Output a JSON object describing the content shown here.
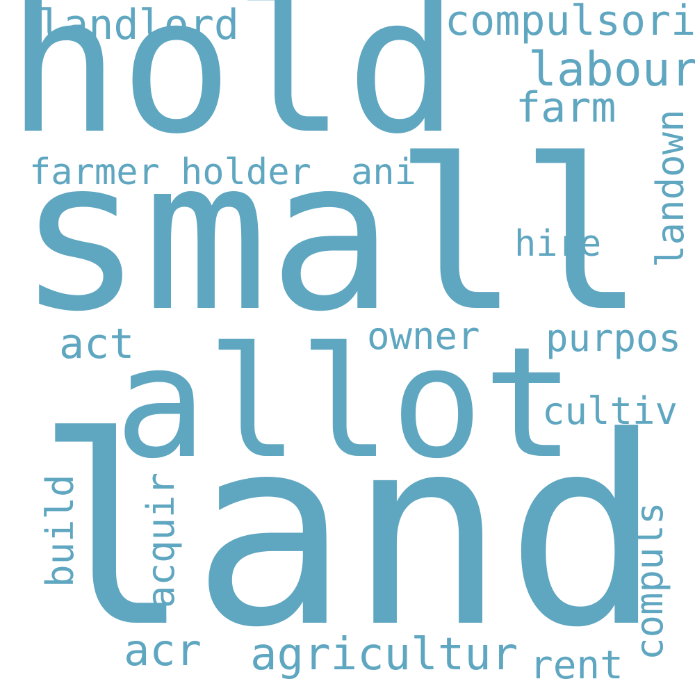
{
  "color": "#5fa6c0",
  "words": {
    "hold": "hold",
    "small": "small",
    "allot": "allot",
    "land": "land",
    "landlord": "landlord",
    "compulsori": "compulsori",
    "labour": "labour",
    "farm": "farm",
    "farmer": "farmer",
    "holder": "holder",
    "ani": "ani",
    "landown": "landown",
    "hire": "hire",
    "act": "act",
    "owner": "owner",
    "purpos": "purpos",
    "cultiv": "cultiv",
    "build": "build",
    "acquir": "acquir",
    "compuls": "compuls",
    "acr": "acr",
    "agricultur": "agricultur",
    "rent": "rent"
  }
}
